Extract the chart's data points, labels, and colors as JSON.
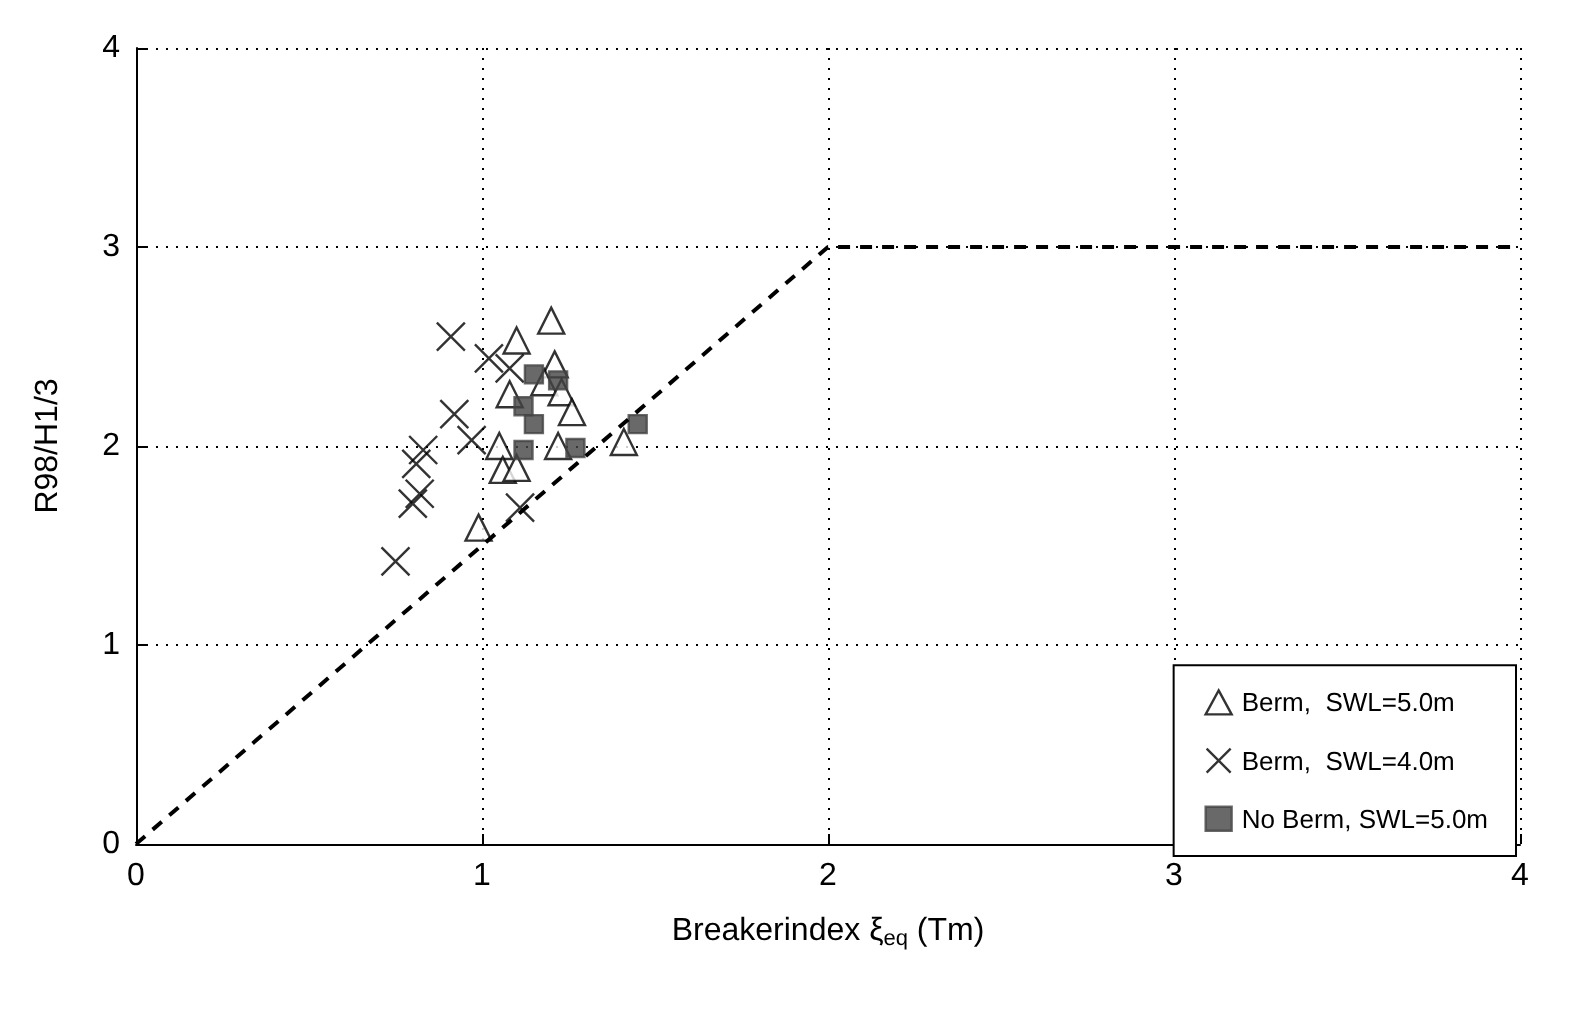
{
  "chart_data": {
    "type": "scatter",
    "xlabel": "Breakerindex ξ$_{eq}$ (Tm)",
    "ylabel": "R98/H1/3",
    "xlim": [
      0,
      4
    ],
    "ylim": [
      0,
      4
    ],
    "xticks": [
      0,
      1,
      2,
      3,
      4
    ],
    "yticks": [
      0,
      1,
      2,
      3,
      4
    ],
    "grid": true,
    "legend": "bottom right",
    "series": [
      {
        "name": "Berm,  SWL=5.0m",
        "color": "#000000",
        "marker": "triangle",
        "x": [
          1.2,
          1.1,
          1.21,
          1.18,
          1.08,
          1.23,
          1.26,
          1.05,
          1.22,
          1.41,
          1.06,
          1.1,
          0.99
        ],
        "values": [
          2.63,
          2.53,
          2.41,
          2.32,
          2.26,
          2.27,
          2.17,
          2.0,
          2.0,
          2.02,
          1.88,
          1.89,
          1.59
        ]
      },
      {
        "name": "Berm,  SWL=4.0m",
        "color": "#000000",
        "marker": "cross",
        "x": [
          0.91,
          1.02,
          1.08,
          0.92,
          0.97,
          0.83,
          0.81,
          0.82,
          0.8,
          1.11,
          0.75
        ],
        "values": [
          2.55,
          2.44,
          2.39,
          2.16,
          2.03,
          1.98,
          1.91,
          1.76,
          1.71,
          1.69,
          1.42
        ]
      },
      {
        "name": "No Berm, SWL=5.0m",
        "color": "#444444",
        "marker": "square",
        "x": [
          1.15,
          1.22,
          1.12,
          1.15,
          1.12,
          1.27,
          1.45
        ],
        "values": [
          2.36,
          2.33,
          2.2,
          2.11,
          1.98,
          1.99,
          2.11
        ]
      },
      {
        "type": "line",
        "color": "#000000",
        "marker": "none",
        "line_style": "dashed",
        "x": [
          0,
          2,
          4
        ],
        "values": [
          0,
          3,
          3
        ]
      }
    ]
  }
}
